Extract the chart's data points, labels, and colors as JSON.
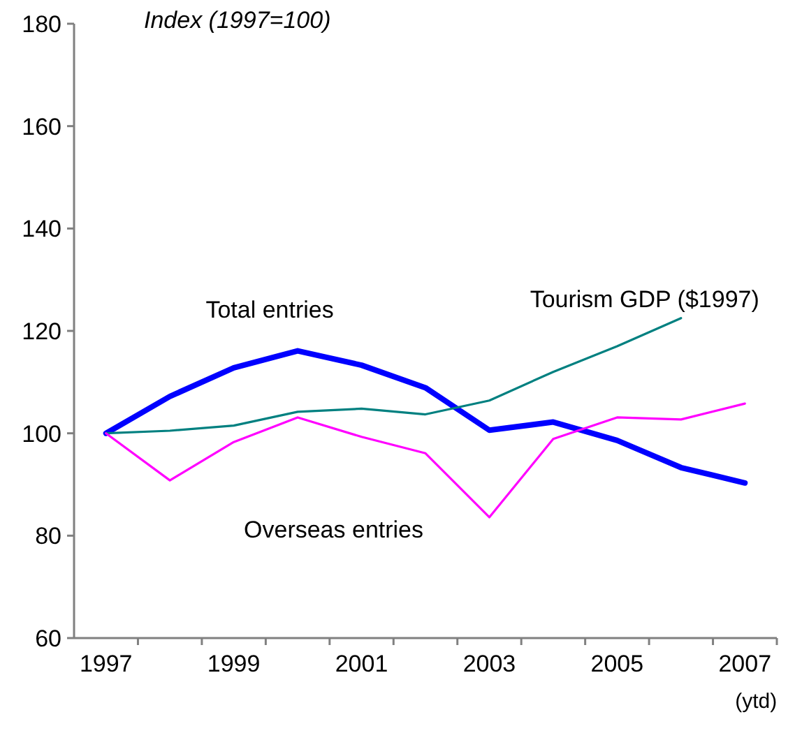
{
  "chart_data": {
    "type": "line",
    "ylabel": "Index (1997=100)",
    "categories": [
      "1997",
      null,
      "1999",
      null,
      "2001",
      null,
      "2003",
      null,
      "2005",
      null,
      "2007"
    ],
    "annotations": [
      "(ytd)"
    ],
    "ylim": [
      60,
      180
    ],
    "yticks": [
      60,
      80,
      100,
      120,
      140,
      160,
      180
    ],
    "grid": false,
    "marker": "none",
    "series": [
      {
        "name": "Total entries",
        "color": "#0000ff",
        "values": [
          100,
          107.2,
          112.8,
          116.1,
          113.3,
          108.9,
          100.6,
          102.2,
          98.6,
          93.3,
          90.3
        ]
      },
      {
        "name": "Tourism GDP ($1997)",
        "color": "#008080",
        "values": [
          100,
          100.5,
          101.5,
          104.2,
          104.8,
          103.7,
          106.4,
          112,
          117,
          122.5,
          null
        ]
      },
      {
        "name": "Overseas entries",
        "color": "#ff00ff",
        "values": [
          100,
          90.8,
          98.3,
          103.1,
          99.3,
          96.1,
          83.6,
          98.9,
          103.1,
          102.7,
          105.8
        ]
      }
    ]
  }
}
